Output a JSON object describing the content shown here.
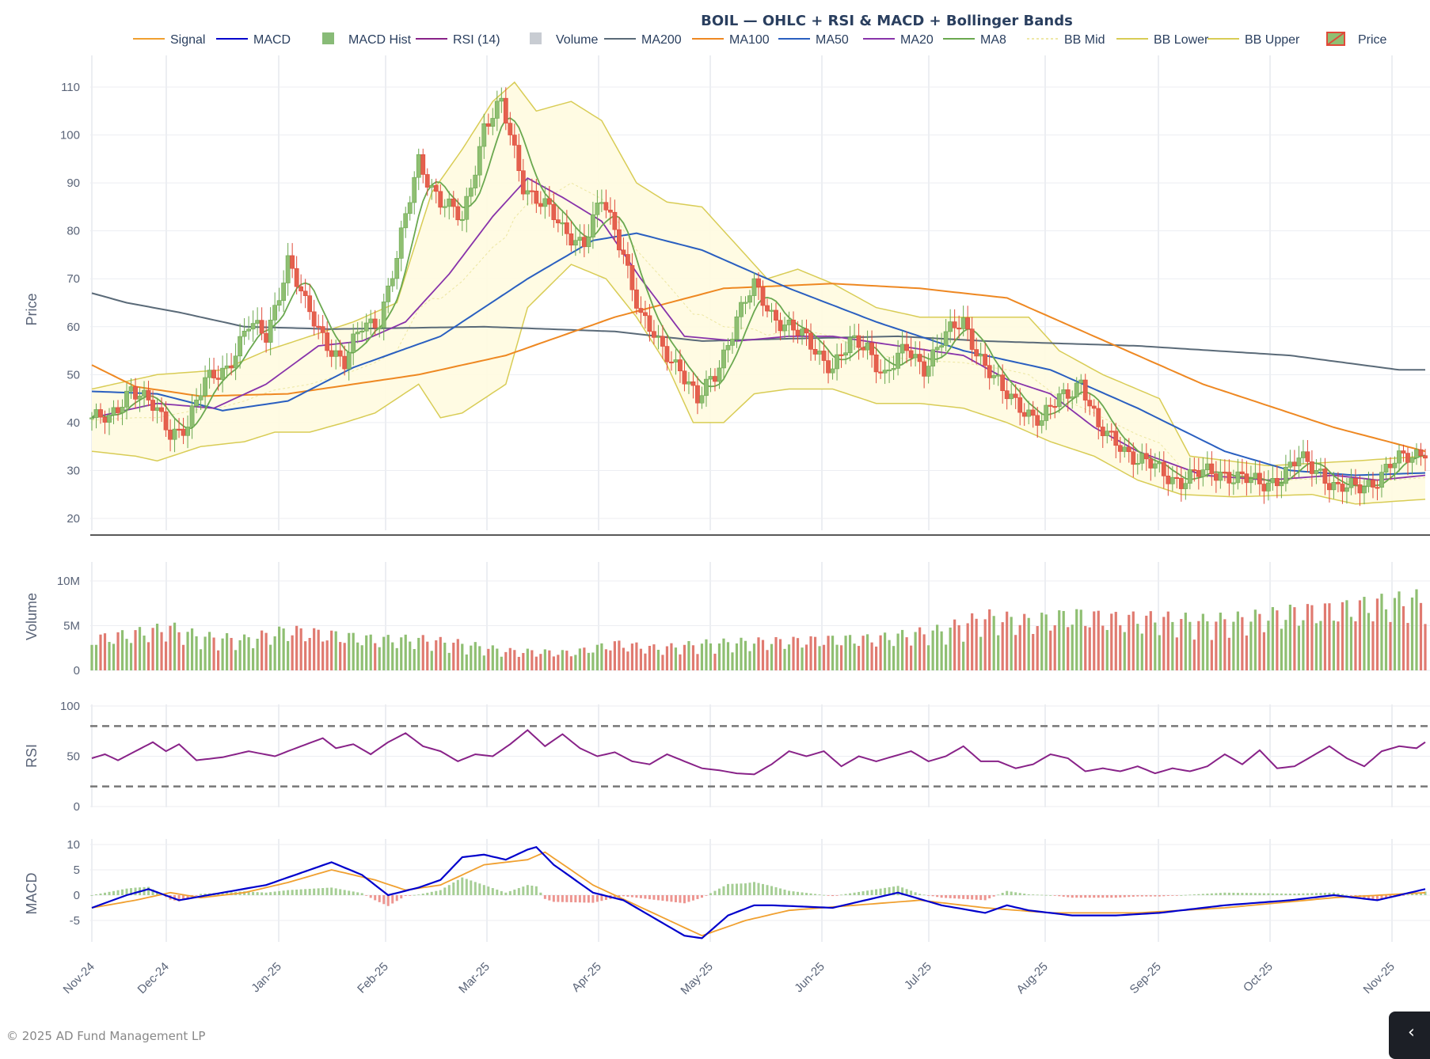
{
  "title": "BOIL — OHLC + RSI & MACD + Bollinger Bands",
  "footer": "© 2025 AD Fund Management LP",
  "legend": [
    {
      "name": "Signal",
      "kind": "line",
      "color": "#f0a030"
    },
    {
      "name": "MACD",
      "kind": "line",
      "color": "#0000cc"
    },
    {
      "name": "MACD Hist",
      "kind": "box",
      "color": "#88bb77"
    },
    {
      "name": "RSI (14)",
      "kind": "line",
      "color": "#882288"
    },
    {
      "name": "Volume",
      "kind": "box",
      "color": "#c8ccd2"
    },
    {
      "name": "MA200",
      "kind": "line",
      "color": "#5a6a78"
    },
    {
      "name": "MA100",
      "kind": "line",
      "color": "#ee8822"
    },
    {
      "name": "MA50",
      "kind": "line",
      "color": "#2a5fc0"
    },
    {
      "name": "MA20",
      "kind": "line",
      "color": "#8833aa"
    },
    {
      "name": "MA8",
      "kind": "line",
      "color": "#6aa84f"
    },
    {
      "name": "BB Mid",
      "kind": "dash",
      "color": "#e8e08a"
    },
    {
      "name": "BB Lower",
      "kind": "line",
      "color": "#d8cc55"
    },
    {
      "name": "BB Upper",
      "kind": "line",
      "color": "#d8cc55"
    },
    {
      "name": "Price",
      "kind": "candle",
      "color": "#e04a3a"
    }
  ],
  "chart_data": {
    "type": "line",
    "x_ticks": [
      "Nov-24",
      "Dec-24",
      "Jan-25",
      "Feb-25",
      "Mar-25",
      "Apr-25",
      "May-25",
      "Jun-25",
      "Jul-25",
      "Aug-25",
      "Sep-25",
      "Oct-25",
      "Nov-25"
    ],
    "panels": {
      "price": {
        "ylabel": "Price",
        "ylim": [
          18,
          115
        ],
        "ticks": [
          20,
          30,
          40,
          50,
          60,
          70,
          80,
          90,
          100,
          110
        ]
      },
      "volume": {
        "ylabel": "Volume",
        "ylim": [
          0,
          12500000
        ],
        "ticks": [
          0,
          5000000,
          10000000
        ],
        "tick_labels": [
          "0",
          "5M",
          "10M"
        ]
      },
      "rsi": {
        "ylabel": "RSI",
        "ylim": [
          0,
          100
        ],
        "ticks": [
          0,
          50,
          100
        ],
        "levels": [
          80,
          20
        ]
      },
      "macd": {
        "ylabel": "MACD",
        "ylim": [
          -10,
          11
        ],
        "ticks": [
          -5,
          0,
          5,
          10
        ]
      }
    },
    "close_path": [
      [
        0,
        41
      ],
      [
        4,
        40
      ],
      [
        9,
        48
      ],
      [
        13,
        44
      ],
      [
        18,
        38
      ],
      [
        22,
        40
      ],
      [
        26,
        48
      ],
      [
        31,
        52
      ],
      [
        36,
        60
      ],
      [
        40,
        58
      ],
      [
        45,
        74
      ],
      [
        49,
        64
      ],
      [
        54,
        57
      ],
      [
        58,
        52
      ],
      [
        62,
        60
      ],
      [
        66,
        62
      ],
      [
        70,
        74
      ],
      [
        75,
        95
      ],
      [
        80,
        86
      ],
      [
        85,
        82
      ],
      [
        90,
        102
      ],
      [
        94,
        106
      ],
      [
        99,
        90
      ],
      [
        104,
        85
      ],
      [
        108,
        80
      ],
      [
        113,
        78
      ],
      [
        117,
        86
      ],
      [
        122,
        76
      ],
      [
        126,
        62
      ],
      [
        130,
        56
      ],
      [
        135,
        52
      ],
      [
        139,
        44
      ],
      [
        143,
        50
      ],
      [
        148,
        62
      ],
      [
        152,
        68
      ],
      [
        156,
        63
      ],
      [
        160,
        60
      ],
      [
        165,
        56
      ],
      [
        170,
        52
      ],
      [
        174,
        56
      ],
      [
        178,
        56
      ],
      [
        182,
        50
      ],
      [
        187,
        55
      ],
      [
        191,
        52
      ],
      [
        195,
        57
      ],
      [
        200,
        61
      ],
      [
        205,
        52
      ],
      [
        209,
        46
      ],
      [
        213,
        44
      ],
      [
        218,
        40
      ],
      [
        222,
        45
      ],
      [
        227,
        49
      ],
      [
        231,
        38
      ],
      [
        236,
        36
      ],
      [
        240,
        32
      ],
      [
        245,
        30
      ],
      [
        250,
        28
      ],
      [
        254,
        29
      ],
      [
        259,
        30
      ],
      [
        264,
        28
      ],
      [
        268,
        27
      ],
      [
        273,
        29
      ],
      [
        277,
        32
      ],
      [
        282,
        30
      ],
      [
        286,
        26
      ],
      [
        290,
        26
      ],
      [
        294,
        28
      ],
      [
        298,
        31
      ],
      [
        303,
        33
      ],
      [
        306,
        35
      ]
    ],
    "ma200": [
      [
        0,
        67
      ],
      [
        8,
        65
      ],
      [
        20,
        63
      ],
      [
        35,
        60
      ],
      [
        55,
        59.5
      ],
      [
        90,
        60
      ],
      [
        120,
        59
      ],
      [
        140,
        57
      ],
      [
        160,
        57.5
      ],
      [
        185,
        58
      ],
      [
        205,
        57
      ],
      [
        240,
        56
      ],
      [
        275,
        54
      ],
      [
        300,
        51
      ]
    ],
    "ma100": [
      [
        0,
        52
      ],
      [
        10,
        47.5
      ],
      [
        25,
        45.5
      ],
      [
        45,
        46
      ],
      [
        75,
        50
      ],
      [
        95,
        54
      ],
      [
        120,
        62
      ],
      [
        145,
        68
      ],
      [
        170,
        69
      ],
      [
        190,
        68
      ],
      [
        210,
        66
      ],
      [
        230,
        58
      ],
      [
        255,
        48
      ],
      [
        285,
        39
      ],
      [
        306,
        34
      ]
    ],
    "ma50": [
      [
        0,
        46.5
      ],
      [
        15,
        46
      ],
      [
        30,
        42.5
      ],
      [
        45,
        44.5
      ],
      [
        60,
        51.5
      ],
      [
        80,
        58
      ],
      [
        100,
        70
      ],
      [
        115,
        78
      ],
      [
        125,
        79.5
      ],
      [
        140,
        76
      ],
      [
        160,
        68
      ],
      [
        180,
        61
      ],
      [
        200,
        55
      ],
      [
        220,
        51
      ],
      [
        240,
        43
      ],
      [
        260,
        34
      ],
      [
        275,
        30
      ],
      [
        290,
        29
      ],
      [
        306,
        29.5
      ]
    ],
    "ma20": [
      [
        0,
        41
      ],
      [
        15,
        44
      ],
      [
        28,
        43
      ],
      [
        40,
        48
      ],
      [
        52,
        56
      ],
      [
        62,
        57
      ],
      [
        72,
        61
      ],
      [
        82,
        71
      ],
      [
        92,
        83
      ],
      [
        100,
        91
      ],
      [
        108,
        87
      ],
      [
        117,
        82
      ],
      [
        126,
        70
      ],
      [
        136,
        58
      ],
      [
        148,
        57
      ],
      [
        160,
        58
      ],
      [
        170,
        58
      ],
      [
        185,
        56
      ],
      [
        200,
        54
      ],
      [
        210,
        49
      ],
      [
        220,
        46
      ],
      [
        230,
        39
      ],
      [
        240,
        34
      ],
      [
        255,
        29
      ],
      [
        270,
        28
      ],
      [
        285,
        29
      ],
      [
        295,
        28
      ],
      [
        306,
        29
      ]
    ],
    "bb_upper": [
      [
        0,
        47
      ],
      [
        15,
        50
      ],
      [
        30,
        51
      ],
      [
        40,
        55
      ],
      [
        50,
        58
      ],
      [
        60,
        61
      ],
      [
        70,
        65
      ],
      [
        78,
        88
      ],
      [
        85,
        97
      ],
      [
        92,
        107
      ],
      [
        97,
        111
      ],
      [
        102,
        105
      ],
      [
        110,
        107
      ],
      [
        117,
        103
      ],
      [
        125,
        90
      ],
      [
        132,
        86
      ],
      [
        140,
        85
      ],
      [
        146,
        79
      ],
      [
        155,
        70
      ],
      [
        162,
        72
      ],
      [
        170,
        69
      ],
      [
        180,
        64
      ],
      [
        190,
        62
      ],
      [
        200,
        62
      ],
      [
        215,
        62
      ],
      [
        222,
        55
      ],
      [
        232,
        50
      ],
      [
        245,
        45
      ],
      [
        252,
        33
      ],
      [
        270,
        31
      ],
      [
        290,
        32
      ],
      [
        306,
        33
      ]
    ],
    "bb_lower": [
      [
        0,
        34
      ],
      [
        10,
        33
      ],
      [
        15,
        32
      ],
      [
        25,
        35
      ],
      [
        35,
        36
      ],
      [
        42,
        38
      ],
      [
        50,
        38
      ],
      [
        58,
        40
      ],
      [
        65,
        42
      ],
      [
        75,
        48
      ],
      [
        80,
        41
      ],
      [
        85,
        42
      ],
      [
        95,
        48
      ],
      [
        100,
        64
      ],
      [
        110,
        73
      ],
      [
        118,
        70
      ],
      [
        125,
        62
      ],
      [
        132,
        52
      ],
      [
        138,
        40
      ],
      [
        145,
        40
      ],
      [
        152,
        46
      ],
      [
        160,
        47
      ],
      [
        170,
        47
      ],
      [
        180,
        44
      ],
      [
        190,
        44
      ],
      [
        200,
        43
      ],
      [
        210,
        40
      ],
      [
        220,
        36
      ],
      [
        230,
        33
      ],
      [
        240,
        28
      ],
      [
        250,
        25
      ],
      [
        262,
        24.5
      ],
      [
        280,
        25
      ],
      [
        290,
        23
      ],
      [
        306,
        24
      ]
    ],
    "volume_path": [
      [
        0,
        3500000
      ],
      [
        10,
        4200000
      ],
      [
        18,
        4800000
      ],
      [
        25,
        3800000
      ],
      [
        35,
        3500000
      ],
      [
        40,
        4000000
      ],
      [
        45,
        4500000
      ],
      [
        55,
        4000000
      ],
      [
        65,
        3500000
      ],
      [
        75,
        3500000
      ],
      [
        85,
        3000000
      ],
      [
        95,
        2200000
      ],
      [
        110,
        2000000
      ],
      [
        120,
        3000000
      ],
      [
        130,
        2500000
      ],
      [
        140,
        3000000
      ],
      [
        150,
        3200000
      ],
      [
        160,
        3300000
      ],
      [
        170,
        3500000
      ],
      [
        180,
        3600000
      ],
      [
        195,
        4500000
      ],
      [
        205,
        6000000
      ],
      [
        215,
        5500000
      ],
      [
        225,
        6200000
      ],
      [
        235,
        5800000
      ],
      [
        245,
        5800000
      ],
      [
        255,
        5500000
      ],
      [
        265,
        5800000
      ],
      [
        275,
        6500000
      ],
      [
        285,
        6800000
      ],
      [
        295,
        7500000
      ],
      [
        306,
        8000000
      ]
    ],
    "rsi_path": [
      [
        0,
        48
      ],
      [
        3,
        52
      ],
      [
        6,
        46
      ],
      [
        10,
        55
      ],
      [
        14,
        64
      ],
      [
        17,
        55
      ],
      [
        20,
        62
      ],
      [
        24,
        46
      ],
      [
        30,
        49
      ],
      [
        36,
        55
      ],
      [
        42,
        50
      ],
      [
        48,
        60
      ],
      [
        53,
        68
      ],
      [
        56,
        58
      ],
      [
        60,
        62
      ],
      [
        64,
        52
      ],
      [
        68,
        64
      ],
      [
        72,
        73
      ],
      [
        76,
        60
      ],
      [
        80,
        55
      ],
      [
        84,
        45
      ],
      [
        88,
        52
      ],
      [
        92,
        50
      ],
      [
        96,
        62
      ],
      [
        100,
        76
      ],
      [
        104,
        60
      ],
      [
        108,
        72
      ],
      [
        112,
        58
      ],
      [
        116,
        50
      ],
      [
        120,
        54
      ],
      [
        124,
        45
      ],
      [
        128,
        42
      ],
      [
        132,
        52
      ],
      [
        136,
        45
      ],
      [
        140,
        38
      ],
      [
        144,
        36
      ],
      [
        148,
        33
      ],
      [
        152,
        32
      ],
      [
        156,
        42
      ],
      [
        160,
        55
      ],
      [
        164,
        50
      ],
      [
        168,
        55
      ],
      [
        172,
        40
      ],
      [
        176,
        50
      ],
      [
        180,
        45
      ],
      [
        184,
        50
      ],
      [
        188,
        55
      ],
      [
        192,
        45
      ],
      [
        196,
        50
      ],
      [
        200,
        60
      ],
      [
        204,
        45
      ],
      [
        208,
        45
      ],
      [
        212,
        38
      ],
      [
        216,
        42
      ],
      [
        220,
        52
      ],
      [
        224,
        48
      ],
      [
        228,
        35
      ],
      [
        232,
        38
      ],
      [
        236,
        35
      ],
      [
        240,
        40
      ],
      [
        244,
        33
      ],
      [
        248,
        38
      ],
      [
        252,
        35
      ],
      [
        256,
        40
      ],
      [
        260,
        52
      ],
      [
        264,
        42
      ],
      [
        268,
        56
      ],
      [
        272,
        38
      ],
      [
        276,
        40
      ],
      [
        280,
        50
      ],
      [
        284,
        60
      ],
      [
        288,
        48
      ],
      [
        292,
        40
      ],
      [
        296,
        55
      ],
      [
        300,
        60
      ],
      [
        304,
        58
      ],
      [
        306,
        64
      ]
    ],
    "macd_path": [
      [
        0,
        -2.5
      ],
      [
        8,
        0
      ],
      [
        13,
        1.2
      ],
      [
        20,
        -1
      ],
      [
        30,
        0.5
      ],
      [
        40,
        2
      ],
      [
        45,
        3.5
      ],
      [
        55,
        6.5
      ],
      [
        62,
        4
      ],
      [
        68,
        0
      ],
      [
        75,
        1.5
      ],
      [
        80,
        3
      ],
      [
        85,
        7.5
      ],
      [
        90,
        8
      ],
      [
        95,
        7
      ],
      [
        100,
        9
      ],
      [
        102,
        9.5
      ],
      [
        106,
        6
      ],
      [
        115,
        0.5
      ],
      [
        122,
        -1
      ],
      [
        130,
        -5
      ],
      [
        136,
        -8
      ],
      [
        140,
        -8.5
      ],
      [
        146,
        -4
      ],
      [
        152,
        -2
      ],
      [
        156,
        -2
      ],
      [
        170,
        -2.5
      ],
      [
        185,
        0.5
      ],
      [
        195,
        -2
      ],
      [
        205,
        -3.5
      ],
      [
        210,
        -2
      ],
      [
        215,
        -3
      ],
      [
        225,
        -4
      ],
      [
        235,
        -4
      ],
      [
        245,
        -3.5
      ],
      [
        260,
        -2
      ],
      [
        275,
        -1
      ],
      [
        285,
        0
      ],
      [
        295,
        -1
      ],
      [
        306,
        1.2
      ]
    ],
    "signal_path": [
      [
        0,
        -2.5
      ],
      [
        10,
        -1
      ],
      [
        18,
        0.5
      ],
      [
        25,
        -0.5
      ],
      [
        35,
        0.5
      ],
      [
        45,
        2.5
      ],
      [
        55,
        5
      ],
      [
        65,
        3
      ],
      [
        72,
        1
      ],
      [
        80,
        2
      ],
      [
        90,
        6
      ],
      [
        100,
        7
      ],
      [
        104,
        8.5
      ],
      [
        115,
        2
      ],
      [
        125,
        -2
      ],
      [
        135,
        -6
      ],
      [
        140,
        -8
      ],
      [
        150,
        -5
      ],
      [
        160,
        -3
      ],
      [
        175,
        -2
      ],
      [
        190,
        -1
      ],
      [
        205,
        -2.5
      ],
      [
        220,
        -3.5
      ],
      [
        240,
        -3.5
      ],
      [
        260,
        -2.5
      ],
      [
        285,
        -0.5
      ],
      [
        306,
        0.5
      ]
    ],
    "candle_count": 307
  }
}
